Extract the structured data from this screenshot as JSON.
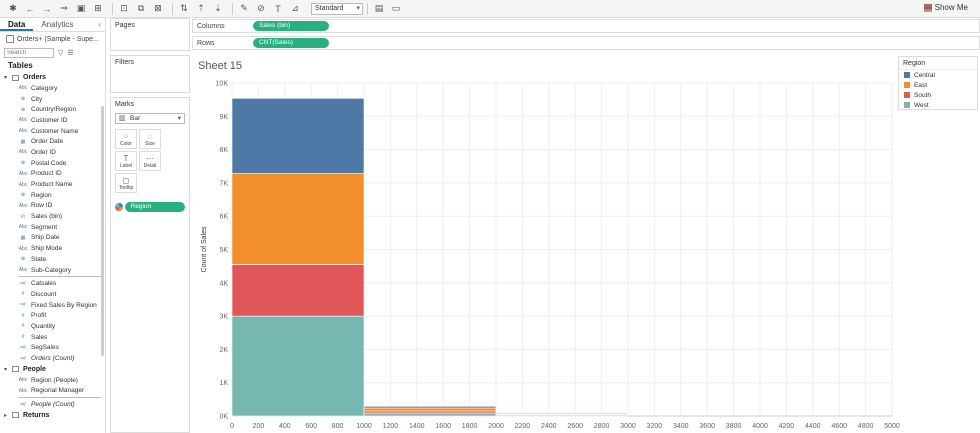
{
  "data_tabs": [
    "Data",
    "Analytics"
  ],
  "datasource": "Orders+ (Sample - Supe...",
  "search_placeholder": "Search",
  "tables_label": "Tables",
  "groups": [
    {
      "name": "Orders",
      "fields": [
        {
          "icon": "Abc",
          "label": "Category",
          "kind": "dim"
        },
        {
          "icon": "⊕",
          "label": "City",
          "kind": "geo"
        },
        {
          "icon": "⊕",
          "label": "Country/Region",
          "kind": "geo"
        },
        {
          "icon": "Abc",
          "label": "Customer ID",
          "kind": "dim"
        },
        {
          "icon": "Abc",
          "label": "Customer Name",
          "kind": "dim"
        },
        {
          "icon": "▦",
          "label": "Order Date",
          "kind": "date"
        },
        {
          "icon": "Abc",
          "label": "Order ID",
          "kind": "dim"
        },
        {
          "icon": "⊕",
          "label": "Postal Code",
          "kind": "geo"
        },
        {
          "icon": "Abc",
          "label": "Product ID",
          "kind": "dim"
        },
        {
          "icon": "Abc",
          "label": "Product Name",
          "kind": "dim"
        },
        {
          "icon": "⊕",
          "label": "Region",
          "kind": "geo"
        },
        {
          "icon": "Abc",
          "label": "Row ID",
          "kind": "dim"
        },
        {
          "icon": "ılı",
          "label": "Sales (bin)",
          "kind": "dim"
        },
        {
          "icon": "Abc",
          "label": "Segment",
          "kind": "dim"
        },
        {
          "icon": "▦",
          "label": "Ship Date",
          "kind": "date"
        },
        {
          "icon": "Abc",
          "label": "Ship Mode",
          "kind": "dim"
        },
        {
          "icon": "⊕",
          "label": "State",
          "kind": "geo"
        },
        {
          "icon": "Abc",
          "label": "Sub-Category",
          "kind": "dim"
        },
        {
          "icon": "=#",
          "label": "Catsales",
          "kind": "measure"
        },
        {
          "icon": "#",
          "label": "Discount",
          "kind": "measure"
        },
        {
          "icon": "=#",
          "label": "Fixed Sales By Region",
          "kind": "measure"
        },
        {
          "icon": "#",
          "label": "Profit",
          "kind": "measure"
        },
        {
          "icon": "#",
          "label": "Quantity",
          "kind": "measure"
        },
        {
          "icon": "#",
          "label": "Sales",
          "kind": "measure"
        },
        {
          "icon": "=#",
          "label": "SegSales",
          "kind": "measure"
        },
        {
          "icon": "=#",
          "label": "Orders (Count)",
          "kind": "measure",
          "italic": true
        }
      ]
    },
    {
      "name": "People",
      "fields": [
        {
          "icon": "Abc",
          "label": "Region (People)",
          "kind": "dim"
        },
        {
          "icon": "Abc",
          "label": "Regional Manager",
          "kind": "dim"
        },
        {
          "icon": "=#",
          "label": "People (Count)",
          "kind": "measure",
          "italic": true
        }
      ]
    },
    {
      "name": "Returns",
      "fields": []
    }
  ],
  "toolbar": {
    "fit_select": "Standard",
    "show_me": "Show Me"
  },
  "cards": {
    "pages": "Pages",
    "filters": "Filters",
    "marks": "Marks",
    "mark_type": "Bar",
    "mark_buttons": [
      {
        "icon": "⁘",
        "label": "Color"
      },
      {
        "icon": "◌",
        "label": "Size"
      },
      {
        "icon": "T",
        "label": "Label"
      },
      {
        "icon": "⋯",
        "label": "Detail"
      },
      {
        "icon": "◻",
        "label": "Tooltip"
      }
    ],
    "color_pill": "Region"
  },
  "shelves": {
    "columns_label": "Columns",
    "columns_pill": "Sales (bin)",
    "rows_label": "Rows",
    "rows_pill": "CNT(Sales)"
  },
  "sheet_title": "Sheet 15",
  "legend": {
    "title": "Region",
    "items": [
      {
        "label": "Central",
        "color": "#4e79a7"
      },
      {
        "label": "East",
        "color": "#f28e2b"
      },
      {
        "label": "South",
        "color": "#e15759"
      },
      {
        "label": "West",
        "color": "#76b7b2"
      }
    ]
  },
  "chart_data": {
    "type": "bar",
    "stacked": true,
    "title": "Sheet 15",
    "xlabel": "",
    "ylabel": "Count of Sales",
    "bin_size": 1000,
    "bins": [
      0,
      1000,
      2000
    ],
    "x_ticks": [
      0,
      200,
      400,
      600,
      800,
      1000,
      1200,
      1400,
      1600,
      1800,
      2000,
      2200,
      2400,
      2600,
      2800,
      3000,
      3200,
      3400,
      3600,
      3800,
      4000,
      4200,
      4400,
      4600,
      4800,
      5000
    ],
    "y_ticks": [
      0,
      1000,
      2000,
      3000,
      4000,
      5000,
      6000,
      7000,
      8000,
      9000,
      10000
    ],
    "y_tick_labels": [
      "0K",
      "1K",
      "2K",
      "3K",
      "4K",
      "5K",
      "6K",
      "7K",
      "8K",
      "9K",
      "10K"
    ],
    "xlim": [
      0,
      5000
    ],
    "ylim": [
      0,
      10000
    ],
    "series": [
      {
        "name": "West",
        "color": "#76b7b2",
        "values": [
          3000,
          90,
          30
        ]
      },
      {
        "name": "South",
        "color": "#e15759",
        "values": [
          1550,
          60,
          20
        ]
      },
      {
        "name": "East",
        "color": "#f28e2b",
        "values": [
          2730,
          90,
          30
        ]
      },
      {
        "name": "Central",
        "color": "#4e79a7",
        "values": [
          2260,
          50,
          20
        ]
      }
    ],
    "grid": true
  }
}
